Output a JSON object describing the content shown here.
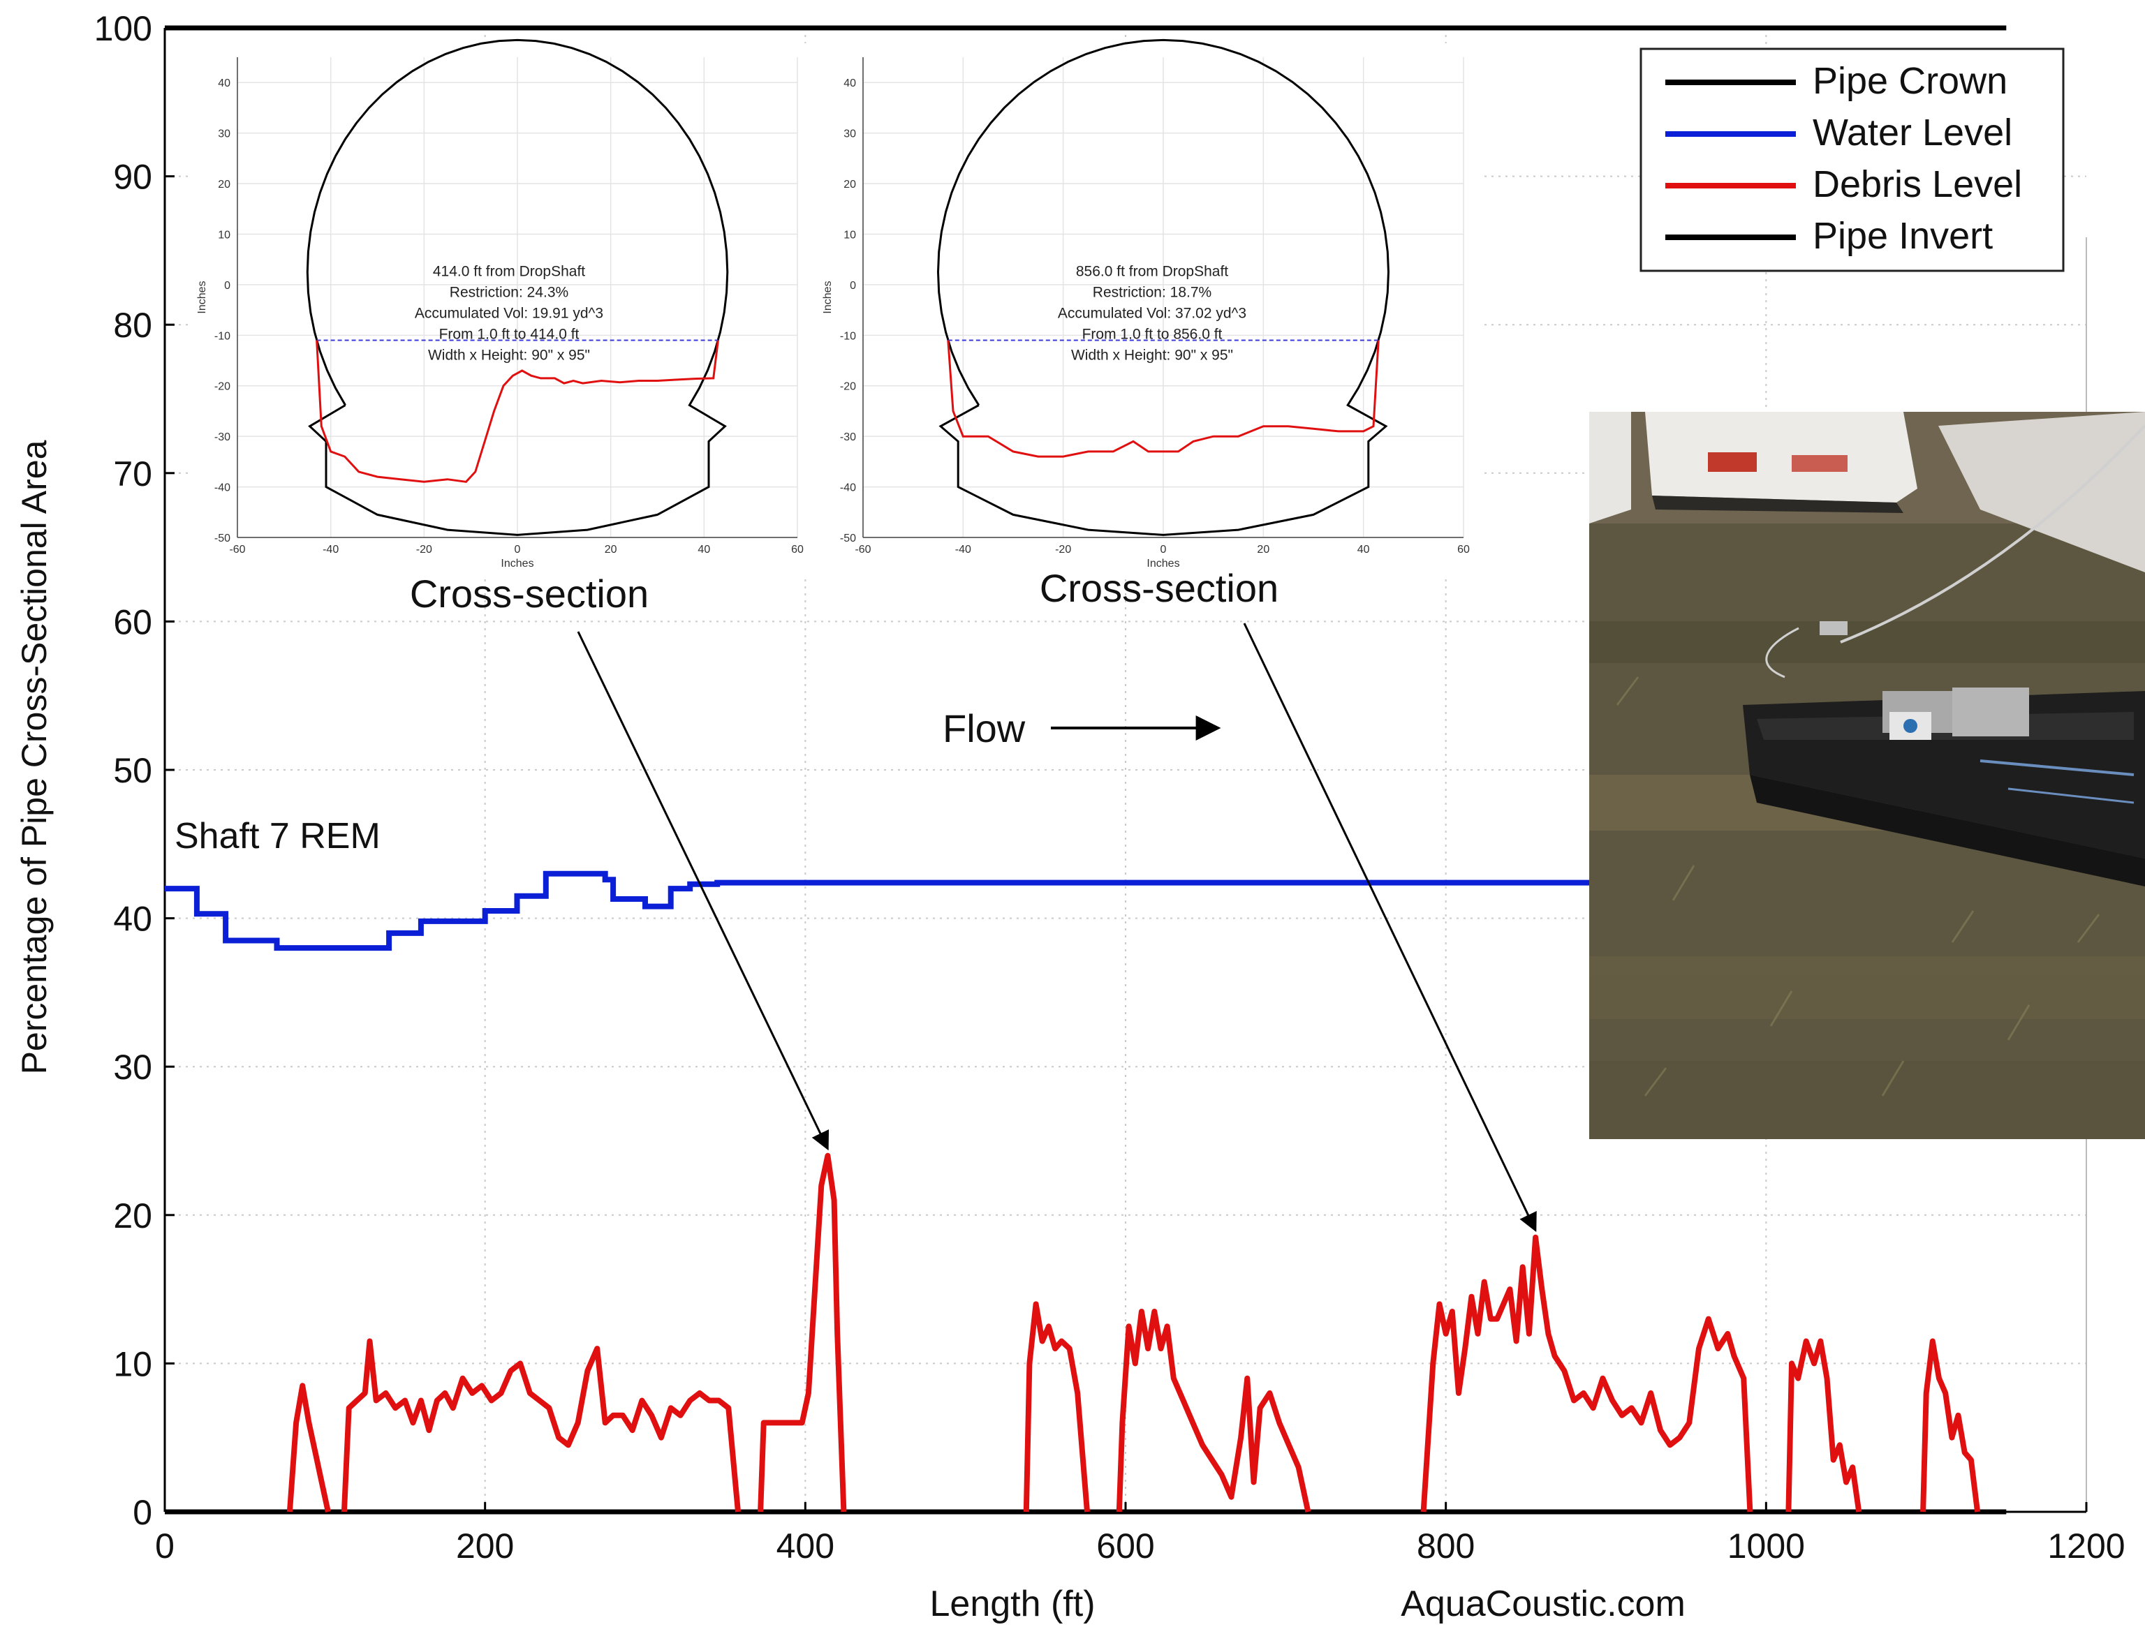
{
  "chart_data": {
    "type": "line",
    "title": "",
    "xlabel": "Length (ft)",
    "ylabel": "Percentage of Pipe Cross-Sectional Area",
    "xlim": [
      0,
      1200
    ],
    "ylim": [
      0,
      100
    ],
    "x_ticks": [
      0,
      200,
      400,
      600,
      800,
      1000,
      1200
    ],
    "y_ticks": [
      0,
      10,
      20,
      30,
      40,
      50,
      60,
      70,
      80,
      90,
      100
    ],
    "grid": true,
    "legend_position": "top-right",
    "colors": {
      "crown": "#000000",
      "water": "#0a1fd6",
      "debris": "#e01010",
      "invert": "#000000"
    },
    "series": [
      {
        "name": "Pipe Crown",
        "x": [
          0,
          1150
        ],
        "y": [
          100,
          100
        ]
      },
      {
        "name": "Water Level",
        "x": [
          0,
          20,
          20,
          38,
          38,
          70,
          70,
          110,
          110,
          140,
          140,
          160,
          160,
          200,
          200,
          220,
          220,
          238,
          238,
          275,
          275,
          280,
          280,
          300,
          300,
          316,
          316,
          328,
          328,
          345,
          345,
          1150
        ],
        "y": [
          42,
          42,
          40.3,
          40.3,
          38.5,
          38.5,
          38,
          38,
          38,
          38,
          39,
          39,
          39.8,
          39.8,
          40.5,
          40.5,
          41.5,
          41.5,
          43,
          43,
          42.6,
          42.6,
          41.3,
          41.3,
          40.8,
          40.8,
          42,
          42,
          42.3,
          42.3,
          42.4,
          42.4
        ]
      },
      {
        "name": "Debris Level",
        "segments": [
          {
            "x": [
              78,
              82,
              86,
              90,
              94,
              98,
              102
            ],
            "y": [
              0,
              6,
              8.5,
              6,
              4,
              2,
              0
            ]
          },
          {
            "x": [
              112,
              115,
              120,
              125,
              128,
              132,
              138,
              144,
              150,
              155,
              160,
              165,
              170,
              175,
              180,
              186,
              192,
              198,
              204,
              210,
              216,
              222,
              228,
              234,
              240,
              246,
              252,
              258,
              264,
              270,
              275,
              280,
              286,
              292,
              298,
              304,
              310,
              316,
              322,
              328,
              334,
              340,
              346,
              352,
              358
            ],
            "y": [
              0,
              7,
              7.5,
              8,
              11.5,
              7.5,
              8,
              7,
              7.5,
              6,
              7.5,
              5.5,
              7.5,
              8,
              7,
              9,
              8,
              8.5,
              7.5,
              8,
              9.5,
              10,
              8,
              7.5,
              7,
              5,
              4.5,
              6,
              9.5,
              11,
              6,
              6.5,
              6.5,
              5.5,
              7.5,
              6.5,
              5,
              7,
              6.5,
              7.5,
              8,
              7.5,
              7.5,
              7,
              0
            ]
          },
          {
            "x": [
              372,
              374,
              380,
              390,
              398,
              402,
              406,
              410,
              414,
              418,
              420,
              424
            ],
            "y": [
              0,
              6,
              6,
              6,
              6,
              8,
              15,
              22,
              24,
              21,
              12,
              0
            ]
          },
          {
            "x": [
              538,
              540,
              544,
              548,
              552,
              556,
              560,
              565,
              570,
              576
            ],
            "y": [
              0,
              10,
              14,
              11.5,
              12.5,
              11,
              11.5,
              11,
              8,
              0
            ]
          },
          {
            "x": [
              596,
              598,
              602,
              606,
              610,
              614,
              618,
              622,
              626,
              630,
              636,
              642,
              648,
              654,
              660,
              666,
              672,
              676,
              680,
              684,
              690,
              696,
              702,
              708,
              714
            ],
            "y": [
              0,
              6,
              12.5,
              10,
              13.5,
              11,
              13.5,
              11,
              12.5,
              9,
              7.5,
              6,
              4.5,
              3.5,
              2.5,
              1,
              5,
              9,
              2,
              7,
              8,
              6,
              4.5,
              3,
              0
            ]
          },
          {
            "x": [
              786,
              792,
              796,
              800,
              804,
              808,
              812,
              816,
              820,
              824,
              828,
              832,
              836,
              840,
              844,
              848,
              852,
              856,
              860,
              864,
              868,
              874,
              880,
              886,
              892,
              898,
              904,
              910,
              916,
              922,
              928,
              934,
              940,
              946,
              952,
              958,
              964,
              970,
              976,
              980,
              986,
              990
            ],
            "y": [
              0,
              10,
              14,
              12,
              13.5,
              8,
              11,
              14.5,
              12,
              15.5,
              13,
              13,
              14,
              15,
              11.5,
              16.5,
              12,
              18.5,
              15,
              12,
              10.5,
              9.5,
              7.5,
              8,
              7,
              9,
              7.5,
              6.5,
              7,
              6,
              8,
              5.5,
              4.5,
              5,
              6,
              11,
              13,
              11,
              12,
              10.5,
              9,
              0
            ]
          },
          {
            "x": [
              1014,
              1016,
              1020,
              1025,
              1030,
              1034,
              1038,
              1042,
              1046,
              1050,
              1054,
              1058
            ],
            "y": [
              0,
              10,
              9,
              11.5,
              10,
              11.5,
              9,
              3.5,
              4.5,
              2,
              3,
              0
            ]
          },
          {
            "x": [
              1098,
              1100,
              1104,
              1108,
              1112,
              1116,
              1120,
              1124,
              1128,
              1132
            ],
            "y": [
              0,
              8,
              11.5,
              9,
              8,
              5,
              6.5,
              4,
              3.5,
              0
            ]
          }
        ]
      },
      {
        "name": "Pipe Invert",
        "x": [
          0,
          1150
        ],
        "y": [
          0,
          0
        ]
      }
    ],
    "annotations": {
      "shaft_label": "Shaft 7 REM",
      "flow_label": "Flow",
      "watermark": "AquaCoustic.com",
      "callouts": [
        {
          "label": "Cross-section",
          "target_x": 414,
          "target_y": 24
        },
        {
          "label": "Cross-section",
          "target_x": 856,
          "target_y": 18.5
        }
      ]
    },
    "insets": [
      {
        "type": "line",
        "xlabel": "Inches",
        "ylabel": "Inches",
        "xlim": [
          -60,
          60
        ],
        "ylim": [
          -50,
          45
        ],
        "x_ticks": [
          -60,
          -40,
          -20,
          0,
          20,
          40,
          60
        ],
        "y_ticks": [
          -50,
          -40,
          -30,
          -20,
          -10,
          0,
          10,
          20,
          30,
          40
        ],
        "water_y": -11,
        "info_lines": [
          "414.0 ft from DropShaft",
          "Restriction: 24.3%",
          "Accumulated Vol: 19.91 yd^3",
          "From 1.0 ft to 414.0 ft",
          "Width x Height: 90\" x 95\""
        ],
        "debris": {
          "x": [
            -43,
            -42,
            -40,
            -37,
            -34,
            -30,
            -25,
            -20,
            -15,
            -11,
            -9,
            -7,
            -5,
            -3,
            -1,
            1,
            3,
            5,
            8,
            10,
            12,
            14,
            18,
            22,
            26,
            30,
            34,
            38,
            42,
            43
          ],
          "y": [
            -11,
            -28,
            -33,
            -34,
            -37,
            -38,
            -38.5,
            -39,
            -38.5,
            -39,
            -37,
            -31,
            -25,
            -20,
            -18,
            -17,
            -18,
            -18.5,
            -18.5,
            -19.5,
            -19,
            -19.5,
            -19,
            -19.3,
            -19,
            -19,
            -18.8,
            -18.6,
            -18.5,
            -11
          ]
        }
      },
      {
        "type": "line",
        "xlabel": "Inches",
        "ylabel": "Inches",
        "xlim": [
          -60,
          60
        ],
        "ylim": [
          -50,
          45
        ],
        "x_ticks": [
          -60,
          -40,
          -20,
          0,
          20,
          40,
          60
        ],
        "y_ticks": [
          -50,
          -40,
          -30,
          -20,
          -10,
          0,
          10,
          20,
          30,
          40
        ],
        "water_y": -11,
        "info_lines": [
          "856.0 ft from DropShaft",
          "Restriction: 18.7%",
          "Accumulated Vol: 37.02 yd^3",
          "From 1.0 ft to 856.0 ft",
          "Width x Height: 90\" x 95\""
        ],
        "debris": {
          "x": [
            -43,
            -42,
            -40,
            -35,
            -30,
            -25,
            -20,
            -15,
            -10,
            -6,
            -3,
            0,
            3,
            6,
            10,
            15,
            20,
            25,
            30,
            35,
            40,
            42,
            43
          ],
          "y": [
            -11,
            -25,
            -30,
            -30,
            -33,
            -34,
            -34,
            -33,
            -33,
            -31,
            -33,
            -33,
            -33,
            -31,
            -30,
            -30,
            -28,
            -28,
            -28.5,
            -29,
            -29,
            -28,
            -11
          ]
        }
      }
    ]
  }
}
